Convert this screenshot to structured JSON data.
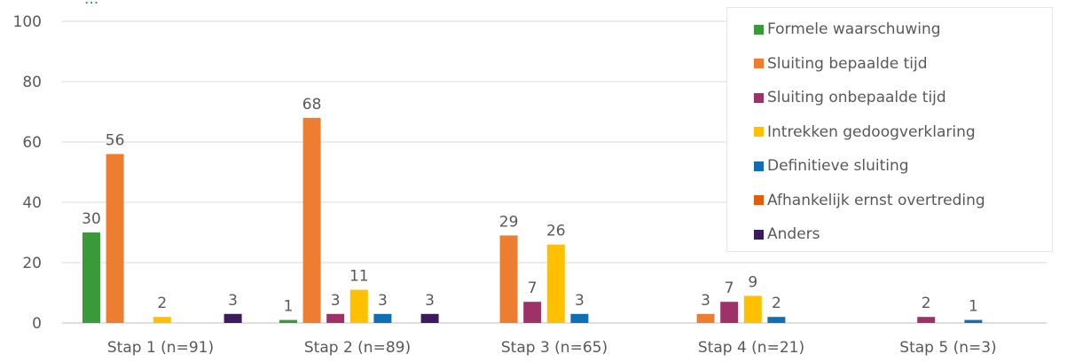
{
  "title_fragment": "...",
  "chart_data": {
    "type": "bar",
    "categories": [
      "Stap 1 (n=91)",
      "Stap 2 (n=89)",
      "Stap 3 (n=65)",
      "Stap 4 (n=21)",
      "Stap 5 (n=3)"
    ],
    "ylim": [
      0,
      100
    ],
    "yticks": [
      0,
      20,
      40,
      60,
      80,
      100
    ],
    "grid": true,
    "legend_position": "top-right",
    "series": [
      {
        "name": "Formele waarschuwing",
        "color": "#3a9a3a",
        "values": [
          30,
          1,
          0,
          0,
          0
        ]
      },
      {
        "name": "Sluiting bepaalde tijd",
        "color": "#ed7d31",
        "values": [
          56,
          68,
          29,
          3,
          0
        ]
      },
      {
        "name": "Sluiting onbepaalde tijd",
        "color": "#9e3168",
        "values": [
          0,
          3,
          7,
          7,
          2
        ]
      },
      {
        "name": "Intrekken gedoogverklaring",
        "color": "#ffc000",
        "values": [
          2,
          11,
          26,
          9,
          0
        ]
      },
      {
        "name": "Definitieve sluiting",
        "color": "#0f6eb4",
        "values": [
          0,
          3,
          3,
          2,
          1
        ]
      },
      {
        "name": "Afhankelijk ernst overtreding",
        "color": "#e35b0b",
        "values": [
          0,
          0,
          0,
          0,
          0
        ]
      },
      {
        "name": "Anders",
        "color": "#3d1a5b",
        "values": [
          3,
          3,
          0,
          0,
          0
        ]
      }
    ]
  }
}
